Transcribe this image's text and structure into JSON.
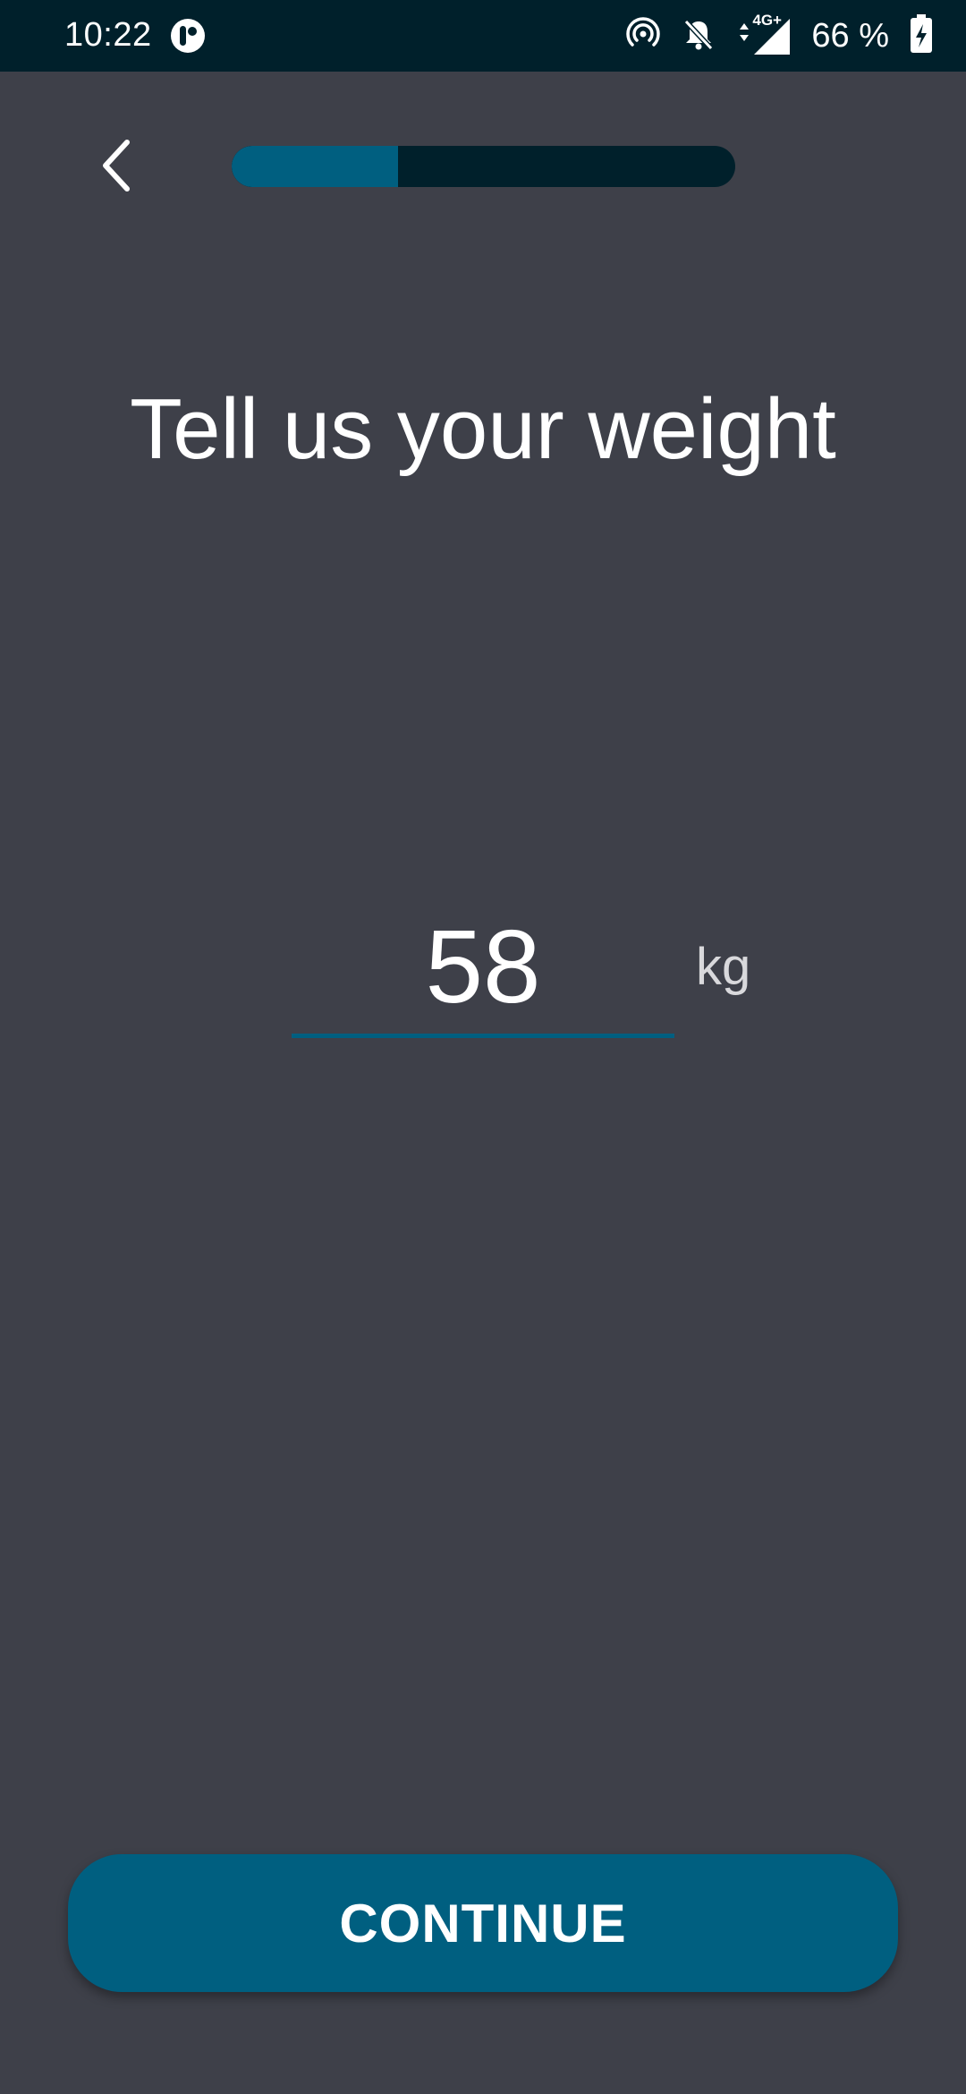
{
  "status_bar": {
    "time": "10:22",
    "battery_text": "66 %",
    "network_label": "4G+",
    "icons": [
      "app-notification-icon",
      "hotspot-icon",
      "bell-off-icon",
      "signal-icon",
      "battery-charging-icon"
    ]
  },
  "header": {
    "back_icon": "chevron-left-icon",
    "progress_fraction": 0.33
  },
  "title": "Tell us your weight",
  "weight": {
    "value": "58",
    "unit": "kg"
  },
  "continue_label": "CONTINUE",
  "colors": {
    "background": "#3e4049",
    "status_bar": "#00202b",
    "accent": "#005f80",
    "text": "#ffffff"
  }
}
